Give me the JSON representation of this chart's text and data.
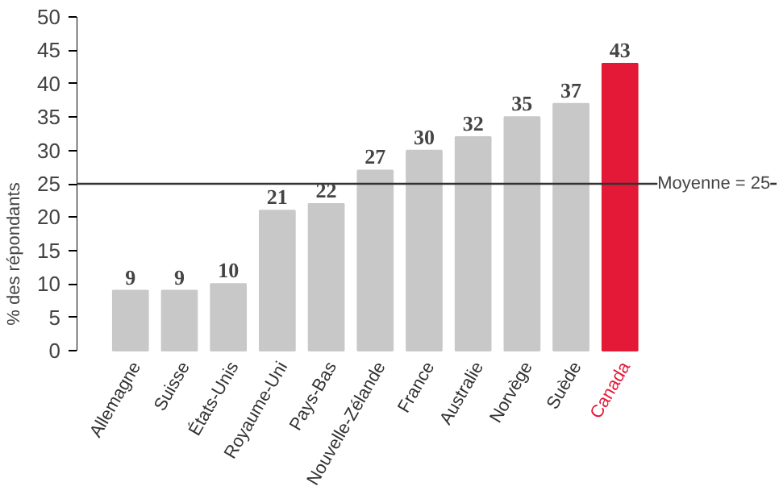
{
  "chart_data": {
    "type": "bar",
    "ylabel": "% des répondants",
    "categories": [
      "Allemagne",
      "Suisse",
      "États-Unis",
      "Royaume-Uni",
      "Pays-Bas",
      "Nouvelle-Zélande",
      "France",
      "Australie",
      "Norvège",
      "Suède",
      "Canada"
    ],
    "values": [
      9,
      9,
      10,
      21,
      22,
      27,
      30,
      32,
      35,
      37,
      43
    ],
    "colors": [
      "#c8c8c8",
      "#c8c8c8",
      "#c8c8c8",
      "#c8c8c8",
      "#c8c8c8",
      "#c8c8c8",
      "#c8c8c8",
      "#c8c8c8",
      "#c8c8c8",
      "#c8c8c8",
      "#e31937"
    ],
    "ylim": [
      0,
      50
    ],
    "yticks": [
      0,
      5,
      10,
      15,
      20,
      25,
      30,
      35,
      40,
      45,
      50
    ],
    "ref_lines": [
      {
        "axis": "y",
        "value": 25,
        "label": "Moyenne = 25",
        "color": "#333333"
      }
    ],
    "data_labels": true,
    "grid": false
  }
}
